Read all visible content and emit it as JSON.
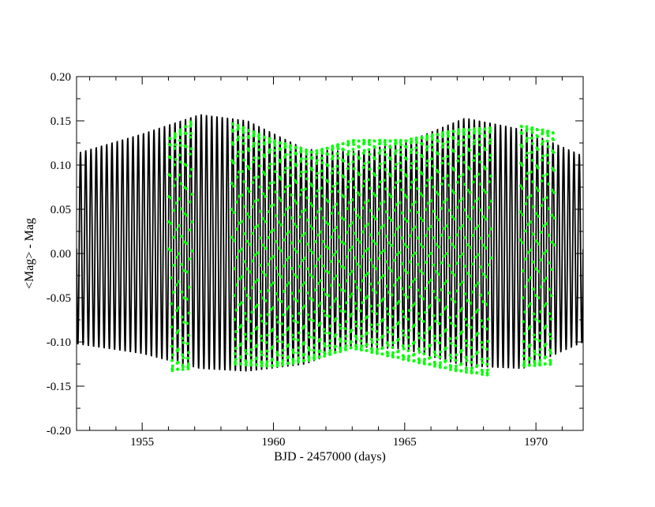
{
  "chart_data": {
    "type": "line",
    "title": "",
    "xlabel": "BJD - 2457000 (days)",
    "ylabel": "<Mag> - Mag",
    "xlim": [
      1952.5,
      1971.8
    ],
    "ylim": [
      -0.2,
      0.2
    ],
    "xticks": [
      1955,
      1960,
      1965,
      1970
    ],
    "xtick_labels": [
      "1955",
      "1960",
      "1965",
      "1970"
    ],
    "yticks": [
      -0.2,
      -0.15,
      -0.1,
      -0.05,
      0.0,
      0.05,
      0.1,
      0.15,
      0.2
    ],
    "ytick_labels": [
      "-0.20",
      "-0.15",
      "-0.10",
      "-0.05",
      "0.00",
      "0.05",
      "0.10",
      "0.15",
      "0.20"
    ],
    "grid": false,
    "legend": "none",
    "series": [
      {
        "style": "line",
        "color": "#000000",
        "pulsation_period_days": 0.2,
        "envelope": {
          "x": [
            1952.5,
            1955.0,
            1957.2,
            1959.0,
            1961.2,
            1963.0,
            1965.0,
            1967.3,
            1969.5,
            1971.8
          ],
          "upper": [
            0.113,
            0.135,
            0.157,
            0.15,
            0.118,
            0.115,
            0.125,
            0.153,
            0.14,
            0.11
          ],
          "lower": [
            -0.102,
            -0.113,
            -0.13,
            -0.133,
            -0.125,
            -0.105,
            -0.108,
            -0.127,
            -0.13,
            -0.1
          ]
        }
      },
      {
        "style": "points",
        "color": "#00ff00",
        "segments": [
          [
            1956.0,
            1956.9
          ],
          [
            1958.4,
            1968.3
          ],
          [
            1969.4,
            1970.7
          ]
        ],
        "envelope": {
          "x": [
            1956.0,
            1956.9,
            1958.4,
            1960.0,
            1961.5,
            1963.0,
            1965.0,
            1967.0,
            1968.3,
            1969.4,
            1970.7
          ],
          "upper": [
            0.13,
            0.15,
            0.148,
            0.128,
            0.115,
            0.128,
            0.128,
            0.14,
            0.142,
            0.145,
            0.137
          ],
          "lower": [
            -0.133,
            -0.13,
            -0.125,
            -0.128,
            -0.12,
            -0.107,
            -0.12,
            -0.133,
            -0.138,
            -0.128,
            -0.125
          ]
        }
      }
    ]
  }
}
